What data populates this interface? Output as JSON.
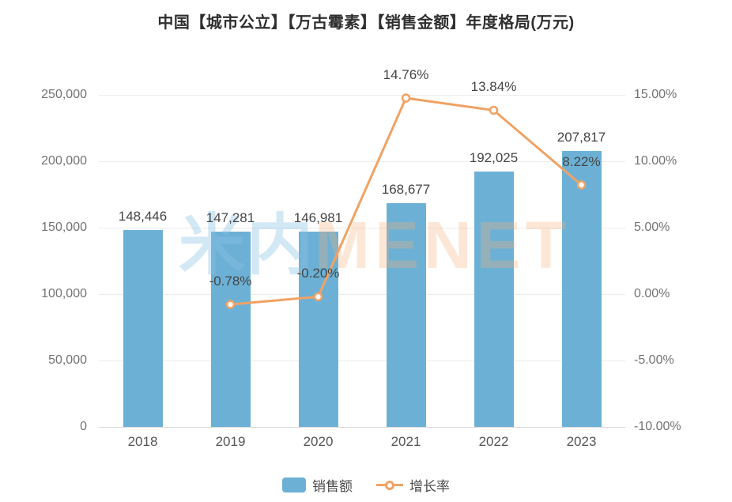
{
  "title": "中国【城市公立】【万古霉素】【销售金额】年度格局(万元)",
  "watermark": {
    "cn": "米内",
    "en": "MENET"
  },
  "legend": {
    "items": [
      {
        "label": "销售额",
        "type": "bar"
      },
      {
        "label": "增长率",
        "type": "line"
      }
    ]
  },
  "colors": {
    "bar": "#6cb1d5",
    "line": "#f0a264",
    "marker_fill": "#ffffff",
    "grid": "#ececec",
    "axis": "#d9d9d9",
    "value_label": "#454545",
    "tick_label": "#737373",
    "title": "#2f2f2f"
  },
  "chart_data": {
    "type": "bar",
    "subtype": "bar+line combo, dual axis",
    "title": "中国【城市公立】【万古霉素】【销售金额】年度格局(万元)",
    "categories": [
      "2018",
      "2019",
      "2020",
      "2021",
      "2022",
      "2023"
    ],
    "series": [
      {
        "name": "销售额",
        "type": "bar",
        "axis": "left",
        "values": [
          148446,
          147281,
          146981,
          168677,
          192025,
          207817
        ],
        "labels": [
          "148,446",
          "147,281",
          "146,981",
          "168,677",
          "192,025",
          "207,817"
        ]
      },
      {
        "name": "增长率",
        "type": "line",
        "axis": "right",
        "values": [
          null,
          -0.78,
          -0.2,
          14.76,
          13.84,
          8.22
        ],
        "labels": [
          null,
          "-0.78%",
          "-0.20%",
          "14.76%",
          "13.84%",
          "8.22%"
        ]
      }
    ],
    "left_axis": {
      "min": 0,
      "max": 250000,
      "tick_step": 50000,
      "ticks": [
        "0",
        "50,000",
        "100,000",
        "150,000",
        "200,000",
        "250,000"
      ]
    },
    "right_axis": {
      "min": -10,
      "max": 15,
      "tick_step": 5,
      "ticks": [
        "-10.00%",
        "-5.00%",
        "0.00%",
        "5.00%",
        "10.00%",
        "15.00%"
      ]
    },
    "grid": true,
    "legend_position": "bottom",
    "xlabel": "",
    "ylabel": ""
  }
}
